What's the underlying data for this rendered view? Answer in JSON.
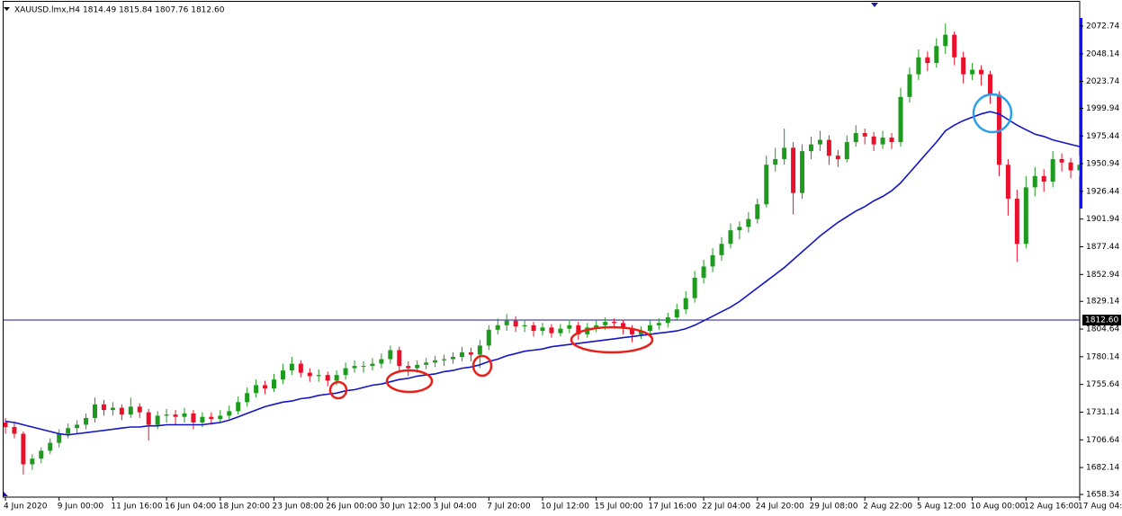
{
  "chart_data": {
    "type": "candlestick",
    "title": "XAUUSD.lmx,H4",
    "quote": "1814.49 1815.84 1807.76 1812.60",
    "categories": [
      "4 Jun 2020",
      null,
      null,
      null,
      null,
      null,
      "9 Jun 00:00",
      null,
      null,
      null,
      null,
      null,
      "11 Jun 16:00",
      null,
      null,
      null,
      null,
      null,
      "16 Jun 04:00",
      null,
      null,
      null,
      null,
      null,
      "18 Jun 20:00",
      null,
      null,
      null,
      null,
      null,
      "23 Jun 08:00",
      null,
      null,
      null,
      null,
      null,
      "26 Jun 00:00",
      null,
      null,
      null,
      null,
      null,
      "30 Jun 12:00",
      null,
      null,
      null,
      null,
      null,
      "3 Jul 04:00",
      null,
      null,
      null,
      null,
      null,
      "7 Jul 20:00",
      null,
      null,
      null,
      null,
      null,
      "10 Jul 12:00",
      null,
      null,
      null,
      null,
      null,
      "15 Jul 00:00",
      null,
      null,
      null,
      null,
      null,
      "17 Jul 16:00",
      null,
      null,
      null,
      null,
      null,
      "22 Jul 04:00",
      null,
      null,
      null,
      null,
      null,
      "24 Jul 20:00",
      null,
      null,
      null,
      null,
      null,
      "29 Jul 08:00",
      null,
      null,
      null,
      null,
      null,
      "2 Aug 22:00",
      null,
      null,
      null,
      null,
      null,
      "5 Aug 12:00",
      null,
      null,
      null,
      null,
      null,
      "10 Aug 00:00",
      null,
      null,
      null,
      null,
      null,
      "12 Aug 16:00",
      null,
      null,
      null,
      null,
      null,
      "17 Aug 04:00"
    ],
    "ohlc": [
      [
        1722,
        1726,
        1712,
        1718
      ],
      [
        1718,
        1722,
        1708,
        1712
      ],
      [
        1712,
        1714,
        1676,
        1685
      ],
      [
        1685,
        1694,
        1680,
        1690
      ],
      [
        1690,
        1700,
        1686,
        1697
      ],
      [
        1697,
        1708,
        1694,
        1704
      ],
      [
        1704,
        1716,
        1700,
        1712
      ],
      [
        1712,
        1721,
        1708,
        1717
      ],
      [
        1717,
        1724,
        1712,
        1720
      ],
      [
        1720,
        1730,
        1716,
        1726
      ],
      [
        1726,
        1744,
        1722,
        1738
      ],
      [
        1738,
        1742,
        1728,
        1733
      ],
      [
        1733,
        1740,
        1728,
        1735
      ],
      [
        1735,
        1738,
        1724,
        1729
      ],
      [
        1729,
        1744,
        1726,
        1736
      ],
      [
        1736,
        1739,
        1726,
        1731
      ],
      [
        1731,
        1734,
        1706,
        1720
      ],
      [
        1720,
        1732,
        1716,
        1728
      ],
      [
        1728,
        1734,
        1722,
        1729
      ],
      [
        1729,
        1733,
        1720,
        1727
      ],
      [
        1727,
        1735,
        1722,
        1730
      ],
      [
        1730,
        1733,
        1716,
        1722
      ],
      [
        1722,
        1731,
        1718,
        1727
      ],
      [
        1727,
        1731,
        1720,
        1725
      ],
      [
        1725,
        1733,
        1722,
        1728
      ],
      [
        1728,
        1737,
        1725,
        1732
      ],
      [
        1732,
        1745,
        1729,
        1740
      ],
      [
        1740,
        1753,
        1736,
        1748
      ],
      [
        1748,
        1760,
        1744,
        1755
      ],
      [
        1755,
        1759,
        1747,
        1752
      ],
      [
        1752,
        1765,
        1749,
        1760
      ],
      [
        1760,
        1774,
        1756,
        1768
      ],
      [
        1768,
        1780,
        1764,
        1774
      ],
      [
        1774,
        1777,
        1762,
        1766
      ],
      [
        1766,
        1770,
        1758,
        1763
      ],
      [
        1763,
        1769,
        1758,
        1764
      ],
      [
        1764,
        1767,
        1754,
        1759
      ],
      [
        1759,
        1768,
        1755,
        1764
      ],
      [
        1764,
        1775,
        1760,
        1770
      ],
      [
        1770,
        1777,
        1766,
        1772
      ],
      [
        1772,
        1776,
        1766,
        1772
      ],
      [
        1772,
        1779,
        1768,
        1774
      ],
      [
        1774,
        1783,
        1770,
        1778
      ],
      [
        1778,
        1790,
        1774,
        1786
      ],
      [
        1786,
        1789,
        1766,
        1772
      ],
      [
        1772,
        1776,
        1763,
        1770
      ],
      [
        1770,
        1777,
        1766,
        1773
      ],
      [
        1773,
        1779,
        1769,
        1775
      ],
      [
        1775,
        1781,
        1771,
        1777
      ],
      [
        1777,
        1782,
        1772,
        1778
      ],
      [
        1778,
        1784,
        1774,
        1780
      ],
      [
        1780,
        1789,
        1776,
        1784
      ],
      [
        1784,
        1788,
        1776,
        1782
      ],
      [
        1782,
        1795,
        1770,
        1790
      ],
      [
        1790,
        1808,
        1786,
        1804
      ],
      [
        1804,
        1814,
        1800,
        1808
      ],
      [
        1808,
        1818,
        1803,
        1812
      ],
      [
        1812,
        1816,
        1802,
        1807
      ],
      [
        1807,
        1813,
        1802,
        1808
      ],
      [
        1808,
        1811,
        1798,
        1803
      ],
      [
        1803,
        1810,
        1799,
        1806
      ],
      [
        1806,
        1809,
        1797,
        1801
      ],
      [
        1801,
        1809,
        1798,
        1805
      ],
      [
        1805,
        1813,
        1801,
        1808
      ],
      [
        1808,
        1811,
        1795,
        1800
      ],
      [
        1800,
        1810,
        1797,
        1806
      ],
      [
        1806,
        1812,
        1802,
        1808
      ],
      [
        1808,
        1815,
        1804,
        1811
      ],
      [
        1811,
        1814,
        1805,
        1810
      ],
      [
        1810,
        1813,
        1800,
        1805
      ],
      [
        1805,
        1808,
        1793,
        1800
      ],
      [
        1800,
        1807,
        1796,
        1803
      ],
      [
        1803,
        1812,
        1800,
        1808
      ],
      [
        1808,
        1814,
        1804,
        1810
      ],
      [
        1810,
        1819,
        1806,
        1815
      ],
      [
        1815,
        1827,
        1812,
        1822
      ],
      [
        1822,
        1838,
        1818,
        1832
      ],
      [
        1832,
        1856,
        1828,
        1850
      ],
      [
        1850,
        1866,
        1845,
        1860
      ],
      [
        1860,
        1876,
        1855,
        1870
      ],
      [
        1870,
        1886,
        1865,
        1880
      ],
      [
        1880,
        1898,
        1876,
        1892
      ],
      [
        1892,
        1900,
        1884,
        1895
      ],
      [
        1895,
        1908,
        1890,
        1902
      ],
      [
        1902,
        1920,
        1898,
        1915
      ],
      [
        1915,
        1958,
        1912,
        1950
      ],
      [
        1950,
        1965,
        1944,
        1955
      ],
      [
        1955,
        1982,
        1950,
        1965
      ],
      [
        1965,
        1970,
        1906,
        1925
      ],
      [
        1925,
        1968,
        1920,
        1962
      ],
      [
        1962,
        1975,
        1955,
        1968
      ],
      [
        1968,
        1980,
        1962,
        1972
      ],
      [
        1972,
        1976,
        1950,
        1958
      ],
      [
        1958,
        1963,
        1948,
        1955
      ],
      [
        1955,
        1976,
        1952,
        1970
      ],
      [
        1970,
        1985,
        1966,
        1978
      ],
      [
        1978,
        1982,
        1968,
        1975
      ],
      [
        1975,
        1979,
        1962,
        1968
      ],
      [
        1968,
        1980,
        1964,
        1974
      ],
      [
        1974,
        1978,
        1964,
        1970
      ],
      [
        1970,
        2018,
        1966,
        2010
      ],
      [
        2010,
        2036,
        2005,
        2030
      ],
      [
        2030,
        2052,
        2025,
        2045
      ],
      [
        2045,
        2050,
        2033,
        2040
      ],
      [
        2040,
        2062,
        2036,
        2055
      ],
      [
        2055,
        2075,
        2048,
        2065
      ],
      [
        2065,
        2068,
        2038,
        2045
      ],
      [
        2045,
        2050,
        2022,
        2030
      ],
      [
        2030,
        2040,
        2025,
        2034
      ],
      [
        2034,
        2038,
        2020,
        2030
      ],
      [
        2030,
        2033,
        2004,
        2012
      ],
      [
        2012,
        2015,
        1940,
        1950
      ],
      [
        1950,
        1955,
        1905,
        1920
      ],
      [
        1920,
        1928,
        1864,
        1880
      ],
      [
        1880,
        1940,
        1876,
        1930
      ],
      [
        1930,
        1948,
        1922,
        1940
      ],
      [
        1940,
        1946,
        1926,
        1935
      ],
      [
        1935,
        1962,
        1930,
        1955
      ],
      [
        1955,
        1960,
        1944,
        1952
      ],
      [
        1952,
        1956,
        1938,
        1945
      ],
      [
        1945,
        1958,
        1940,
        1950
      ]
    ],
    "up_color": "#1e9a1e",
    "down_color": "#e8102a",
    "ma": {
      "color": "#1414c8",
      "values": [
        1723,
        1722,
        1720,
        1718,
        1716,
        1714,
        1712,
        1711,
        1712,
        1713,
        1714,
        1715,
        1716,
        1717,
        1718,
        1718,
        1719,
        1719,
        1720,
        1720,
        1720,
        1720,
        1720,
        1721,
        1722,
        1724,
        1727,
        1730,
        1733,
        1736,
        1738,
        1740,
        1741,
        1743,
        1744,
        1746,
        1747,
        1748,
        1750,
        1751,
        1753,
        1755,
        1756,
        1758,
        1760,
        1761,
        1763,
        1764,
        1765,
        1767,
        1768,
        1770,
        1771,
        1773,
        1776,
        1778,
        1781,
        1783,
        1785,
        1786,
        1787,
        1789,
        1790,
        1791,
        1792,
        1793,
        1794,
        1795,
        1796,
        1797,
        1798,
        1799,
        1800,
        1801,
        1802,
        1803,
        1805,
        1808,
        1812,
        1816,
        1820,
        1824,
        1829,
        1835,
        1841,
        1847,
        1853,
        1859,
        1866,
        1873,
        1880,
        1887,
        1893,
        1899,
        1904,
        1909,
        1913,
        1918,
        1922,
        1927,
        1934,
        1943,
        1952,
        1961,
        1970,
        1980,
        1985,
        1989,
        1992,
        1995,
        1997,
        1995,
        1990,
        1985,
        1981,
        1977,
        1975,
        1972,
        1970,
        1968,
        1966
      ]
    },
    "price_line": {
      "value": 1812.6,
      "label": "1812.60",
      "color": "#1a1a9a"
    },
    "ylim": [
      1655.96,
      2094.14
    ],
    "yticks": [
      1658.34,
      1682.14,
      1706.64,
      1731.14,
      1755.64,
      1780.14,
      1804.64,
      1829.14,
      1852.94,
      1877.44,
      1901.94,
      1926.44,
      1950.94,
      1975.44,
      1999.94,
      2023.74,
      2048.14,
      2072.74
    ]
  }
}
